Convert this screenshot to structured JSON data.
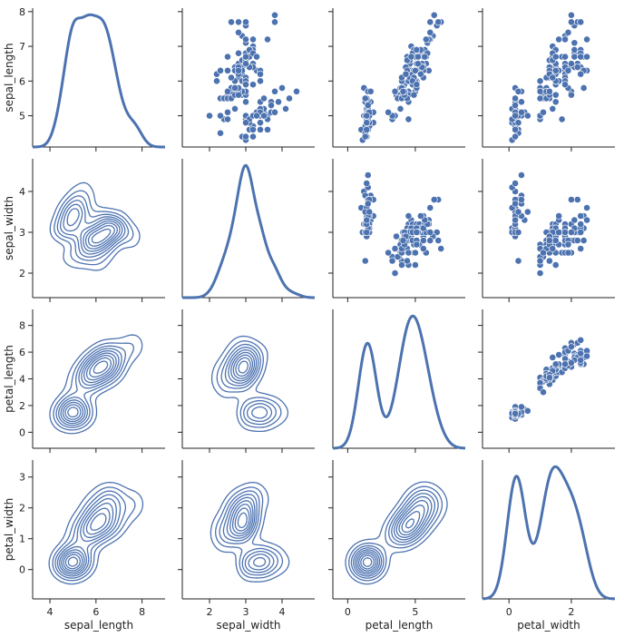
{
  "chart_data": {
    "type": "pairgrid",
    "variables": [
      "sepal_length",
      "sepal_width",
      "petal_length",
      "petal_width"
    ],
    "diag": "kde",
    "upper": "scatter",
    "lower": "kde",
    "color": "#4c72b0",
    "axes": {
      "sepal_length": {
        "lim": [
          3.25,
          9.0
        ],
        "ticks": [
          4,
          6,
          8
        ],
        "y_ticks": [
          5,
          6,
          7,
          8
        ],
        "y_lim": [
          4.1,
          8.1
        ]
      },
      "sepal_width": {
        "lim": [
          1.25,
          4.9
        ],
        "ticks": [
          2,
          3,
          4
        ],
        "y_ticks": [
          2,
          3,
          4
        ],
        "y_lim": [
          1.4,
          4.8
        ]
      },
      "petal_length": {
        "lim": [
          -1.1,
          8.7
        ],
        "ticks": [
          0,
          5
        ],
        "y_ticks": [
          0,
          2,
          4,
          6,
          8
        ],
        "y_lim": [
          -1.2,
          9.2
        ]
      },
      "petal_width": {
        "lim": [
          -0.85,
          3.4
        ],
        "ticks": [
          0,
          2
        ],
        "y_ticks": [
          0,
          1,
          2,
          3
        ],
        "y_lim": [
          -0.95,
          3.55
        ]
      }
    },
    "points": [
      [
        5.1,
        3.5,
        1.4,
        0.2
      ],
      [
        4.9,
        3.0,
        1.4,
        0.2
      ],
      [
        4.7,
        3.2,
        1.3,
        0.2
      ],
      [
        4.6,
        3.1,
        1.5,
        0.2
      ],
      [
        5.0,
        3.6,
        1.4,
        0.2
      ],
      [
        5.4,
        3.9,
        1.7,
        0.4
      ],
      [
        4.6,
        3.4,
        1.4,
        0.3
      ],
      [
        5.0,
        3.4,
        1.5,
        0.2
      ],
      [
        4.4,
        2.9,
        1.4,
        0.2
      ],
      [
        4.9,
        3.1,
        1.5,
        0.1
      ],
      [
        5.4,
        3.7,
        1.5,
        0.2
      ],
      [
        4.8,
        3.4,
        1.6,
        0.2
      ],
      [
        4.8,
        3.0,
        1.4,
        0.1
      ],
      [
        4.3,
        3.0,
        1.1,
        0.1
      ],
      [
        5.8,
        4.0,
        1.2,
        0.2
      ],
      [
        5.7,
        4.4,
        1.5,
        0.4
      ],
      [
        5.4,
        3.9,
        1.3,
        0.4
      ],
      [
        5.1,
        3.5,
        1.4,
        0.3
      ],
      [
        5.7,
        3.8,
        1.7,
        0.3
      ],
      [
        5.1,
        3.8,
        1.5,
        0.3
      ],
      [
        5.4,
        3.4,
        1.7,
        0.2
      ],
      [
        5.1,
        3.7,
        1.5,
        0.4
      ],
      [
        4.6,
        3.6,
        1.0,
        0.2
      ],
      [
        5.1,
        3.3,
        1.7,
        0.5
      ],
      [
        4.8,
        3.4,
        1.9,
        0.2
      ],
      [
        5.0,
        3.0,
        1.6,
        0.2
      ],
      [
        5.0,
        3.4,
        1.6,
        0.4
      ],
      [
        5.2,
        3.5,
        1.5,
        0.2
      ],
      [
        5.2,
        3.4,
        1.4,
        0.2
      ],
      [
        4.7,
        3.2,
        1.6,
        0.2
      ],
      [
        4.8,
        3.1,
        1.6,
        0.2
      ],
      [
        5.4,
        3.4,
        1.5,
        0.4
      ],
      [
        5.2,
        4.1,
        1.5,
        0.1
      ],
      [
        5.5,
        4.2,
        1.4,
        0.2
      ],
      [
        4.9,
        3.1,
        1.5,
        0.2
      ],
      [
        5.0,
        3.2,
        1.2,
        0.2
      ],
      [
        5.5,
        3.5,
        1.3,
        0.2
      ],
      [
        4.9,
        3.6,
        1.4,
        0.1
      ],
      [
        4.4,
        3.0,
        1.3,
        0.2
      ],
      [
        5.1,
        3.4,
        1.5,
        0.2
      ],
      [
        5.0,
        3.5,
        1.3,
        0.3
      ],
      [
        4.5,
        2.3,
        1.3,
        0.3
      ],
      [
        4.4,
        3.2,
        1.3,
        0.2
      ],
      [
        5.0,
        3.5,
        1.6,
        0.6
      ],
      [
        5.1,
        3.8,
        1.9,
        0.4
      ],
      [
        4.8,
        3.0,
        1.4,
        0.3
      ],
      [
        5.1,
        3.8,
        1.6,
        0.2
      ],
      [
        4.6,
        3.2,
        1.4,
        0.2
      ],
      [
        5.3,
        3.7,
        1.5,
        0.2
      ],
      [
        5.0,
        3.3,
        1.4,
        0.2
      ],
      [
        7.0,
        3.2,
        4.7,
        1.4
      ],
      [
        6.4,
        3.2,
        4.5,
        1.5
      ],
      [
        6.9,
        3.1,
        4.9,
        1.5
      ],
      [
        5.5,
        2.3,
        4.0,
        1.3
      ],
      [
        6.5,
        2.8,
        4.6,
        1.5
      ],
      [
        5.7,
        2.8,
        4.5,
        1.3
      ],
      [
        6.3,
        3.3,
        4.7,
        1.6
      ],
      [
        4.9,
        2.4,
        3.3,
        1.0
      ],
      [
        6.6,
        2.9,
        4.6,
        1.3
      ],
      [
        5.2,
        2.7,
        3.9,
        1.4
      ],
      [
        5.0,
        2.0,
        3.5,
        1.0
      ],
      [
        5.9,
        3.0,
        4.2,
        1.5
      ],
      [
        6.0,
        2.2,
        4.0,
        1.0
      ],
      [
        6.1,
        2.9,
        4.7,
        1.4
      ],
      [
        5.6,
        2.9,
        3.6,
        1.3
      ],
      [
        6.7,
        3.1,
        4.4,
        1.4
      ],
      [
        5.6,
        3.0,
        4.5,
        1.5
      ],
      [
        5.8,
        2.7,
        4.1,
        1.0
      ],
      [
        6.2,
        2.2,
        4.5,
        1.5
      ],
      [
        5.6,
        2.5,
        3.9,
        1.1
      ],
      [
        5.9,
        3.2,
        4.8,
        1.8
      ],
      [
        6.1,
        2.8,
        4.0,
        1.3
      ],
      [
        6.3,
        2.5,
        4.9,
        1.5
      ],
      [
        6.1,
        2.8,
        4.7,
        1.2
      ],
      [
        6.4,
        2.9,
        4.3,
        1.3
      ],
      [
        6.6,
        3.0,
        4.4,
        1.4
      ],
      [
        6.8,
        2.8,
        4.8,
        1.4
      ],
      [
        6.7,
        3.0,
        5.0,
        1.7
      ],
      [
        6.0,
        2.9,
        4.5,
        1.5
      ],
      [
        5.7,
        2.6,
        3.5,
        1.0
      ],
      [
        5.5,
        2.4,
        3.8,
        1.1
      ],
      [
        5.5,
        2.4,
        3.7,
        1.0
      ],
      [
        5.8,
        2.7,
        3.9,
        1.2
      ],
      [
        6.0,
        2.7,
        5.1,
        1.6
      ],
      [
        5.4,
        3.0,
        4.5,
        1.5
      ],
      [
        6.0,
        3.4,
        4.5,
        1.6
      ],
      [
        6.7,
        3.1,
        4.7,
        1.5
      ],
      [
        6.3,
        2.3,
        4.4,
        1.3
      ],
      [
        5.6,
        3.0,
        4.1,
        1.3
      ],
      [
        5.5,
        2.5,
        4.0,
        1.3
      ],
      [
        5.5,
        2.6,
        4.4,
        1.2
      ],
      [
        6.1,
        3.0,
        4.6,
        1.4
      ],
      [
        5.8,
        2.6,
        4.0,
        1.2
      ],
      [
        5.0,
        2.3,
        3.3,
        1.0
      ],
      [
        5.6,
        2.7,
        4.2,
        1.3
      ],
      [
        5.7,
        3.0,
        4.2,
        1.2
      ],
      [
        5.7,
        2.9,
        4.2,
        1.3
      ],
      [
        6.2,
        2.9,
        4.3,
        1.3
      ],
      [
        5.1,
        2.5,
        3.0,
        1.1
      ],
      [
        5.7,
        2.8,
        4.1,
        1.3
      ],
      [
        6.3,
        3.3,
        6.0,
        2.5
      ],
      [
        5.8,
        2.7,
        5.1,
        1.9
      ],
      [
        7.1,
        3.0,
        5.9,
        2.1
      ],
      [
        6.3,
        2.9,
        5.6,
        1.8
      ],
      [
        6.5,
        3.0,
        5.8,
        2.2
      ],
      [
        7.6,
        3.0,
        6.6,
        2.1
      ],
      [
        4.9,
        2.5,
        4.5,
        1.7
      ],
      [
        7.3,
        2.9,
        6.3,
        1.8
      ],
      [
        6.7,
        2.5,
        5.8,
        1.8
      ],
      [
        7.2,
        3.6,
        6.1,
        2.5
      ],
      [
        6.5,
        3.2,
        5.1,
        2.0
      ],
      [
        6.4,
        2.7,
        5.3,
        1.9
      ],
      [
        6.8,
        3.0,
        5.5,
        2.1
      ],
      [
        5.7,
        2.5,
        5.0,
        2.0
      ],
      [
        5.8,
        2.8,
        5.1,
        2.4
      ],
      [
        6.4,
        3.2,
        5.3,
        2.3
      ],
      [
        6.5,
        3.0,
        5.5,
        1.8
      ],
      [
        7.7,
        3.8,
        6.7,
        2.2
      ],
      [
        7.7,
        2.6,
        6.9,
        2.3
      ],
      [
        6.0,
        2.2,
        5.0,
        1.5
      ],
      [
        6.9,
        3.2,
        5.7,
        2.3
      ],
      [
        5.6,
        2.8,
        4.9,
        2.0
      ],
      [
        7.7,
        2.8,
        6.7,
        2.0
      ],
      [
        6.3,
        2.7,
        4.9,
        1.8
      ],
      [
        6.7,
        3.3,
        5.7,
        2.1
      ],
      [
        7.2,
        3.2,
        6.0,
        1.8
      ],
      [
        6.2,
        2.8,
        4.8,
        1.8
      ],
      [
        6.1,
        3.0,
        4.9,
        1.8
      ],
      [
        6.4,
        2.8,
        5.6,
        2.1
      ],
      [
        7.2,
        3.0,
        5.8,
        1.6
      ],
      [
        7.4,
        2.8,
        6.1,
        1.9
      ],
      [
        7.9,
        3.8,
        6.4,
        2.0
      ],
      [
        6.4,
        2.8,
        5.6,
        2.2
      ],
      [
        6.3,
        2.8,
        5.1,
        1.5
      ],
      [
        6.1,
        2.6,
        5.6,
        1.4
      ],
      [
        7.7,
        3.0,
        6.1,
        2.3
      ],
      [
        6.3,
        3.4,
        5.6,
        2.4
      ],
      [
        6.4,
        3.1,
        5.5,
        1.8
      ],
      [
        6.0,
        3.0,
        4.8,
        1.8
      ],
      [
        6.9,
        3.1,
        5.4,
        2.1
      ],
      [
        6.7,
        3.1,
        5.6,
        2.4
      ],
      [
        6.9,
        3.1,
        5.1,
        2.3
      ],
      [
        5.8,
        2.7,
        5.1,
        1.9
      ],
      [
        6.8,
        3.2,
        5.9,
        2.3
      ],
      [
        6.7,
        3.3,
        5.7,
        2.5
      ],
      [
        6.7,
        3.0,
        5.2,
        2.3
      ],
      [
        6.3,
        2.5,
        5.0,
        1.9
      ],
      [
        6.5,
        3.0,
        5.2,
        2.0
      ],
      [
        6.2,
        3.4,
        5.4,
        2.3
      ],
      [
        5.9,
        3.0,
        5.1,
        1.8
      ]
    ]
  }
}
